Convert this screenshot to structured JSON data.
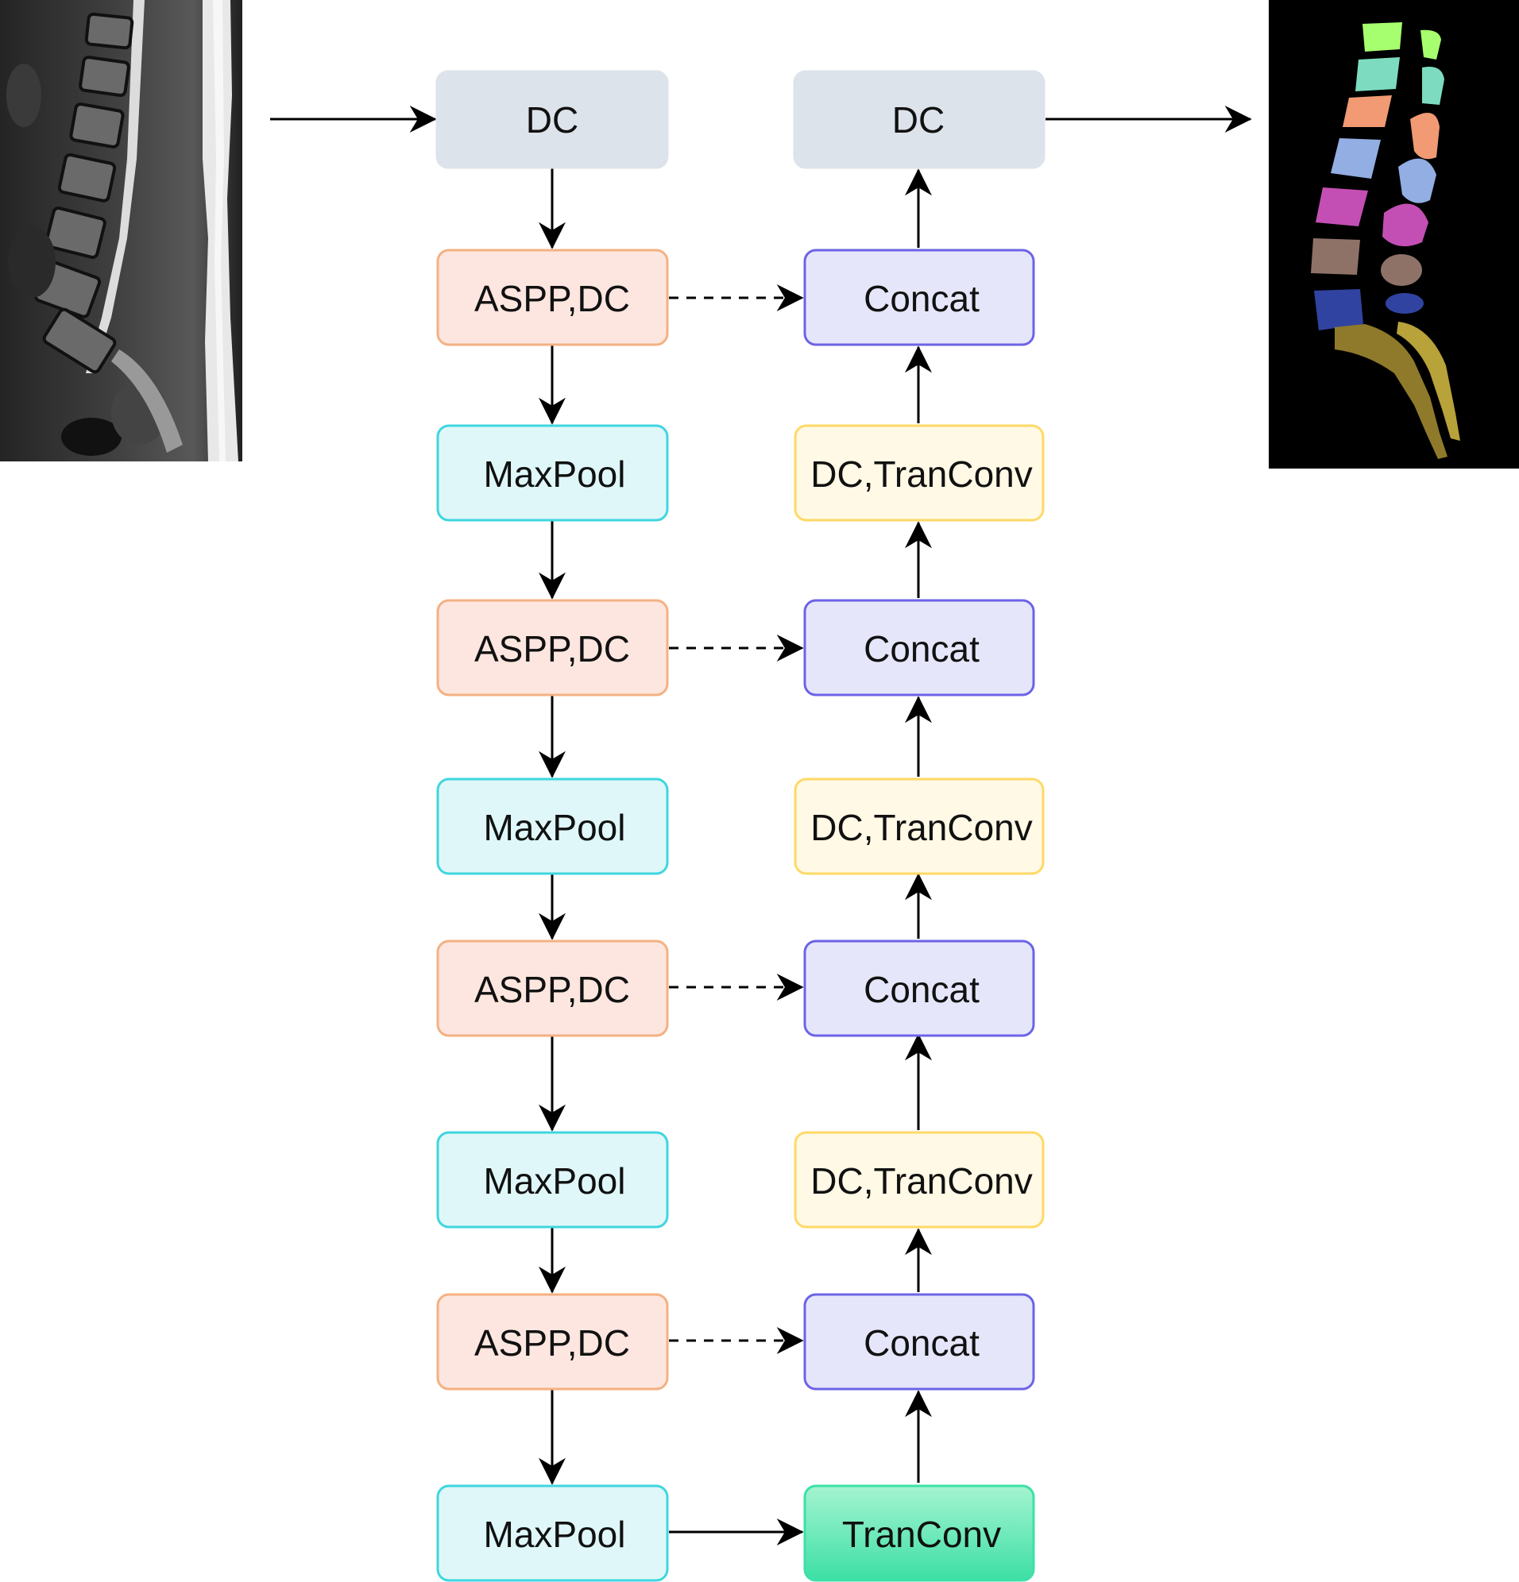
{
  "nodes": {
    "enc_dc": "DC",
    "enc_aspp_1": "ASPP,DC",
    "enc_pool_1": "MaxPool",
    "enc_aspp_2": "ASPP,DC",
    "enc_pool_2": "MaxPool",
    "enc_aspp_3": "ASPP,DC",
    "enc_pool_3": "MaxPool",
    "enc_aspp_4": "ASPP,DC",
    "enc_pool_4": "MaxPool",
    "dec_dc": "DC",
    "dec_concat_1": "Concat",
    "dec_up_1": "DC,TranConv",
    "dec_concat_2": "Concat",
    "dec_up_2": "DC,TranConv",
    "dec_concat_3": "Concat",
    "dec_up_3": "DC,TranConv",
    "dec_concat_4": "Concat",
    "bottleneck": "TranConv"
  },
  "colors": {
    "dc_fill": "#dde3ea",
    "dc_stroke": "#dde3ea",
    "aspp_fill": "#fde6df",
    "aspp_stroke": "#f4b183",
    "pool_fill": "#dff7f8",
    "pool_stroke": "#3fd6e0",
    "concat_fill": "#e6e6fb",
    "concat_stroke": "#6d63e6",
    "up_fill": "#fff9e5",
    "up_stroke": "#ffd966",
    "bottleneck_fill_top": "#9df3cc",
    "bottleneck_fill_bottom": "#3ee0a8",
    "bottleneck_stroke": "#3ee0a8",
    "arrow": "#000000"
  },
  "images": {
    "input": "mri-sagittal-spine",
    "output": "vertebrae-segmentation-mask"
  }
}
